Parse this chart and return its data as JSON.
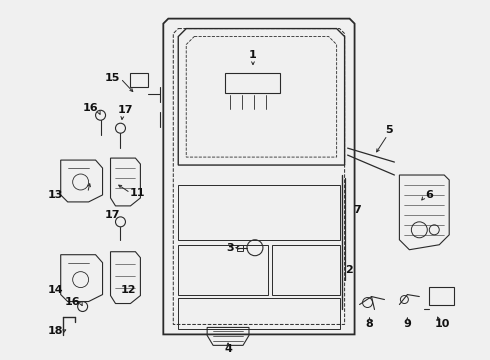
{
  "bg_color": "#f0f0f0",
  "figsize": [
    4.9,
    3.6
  ],
  "dpi": 100,
  "image_pixels": null
}
